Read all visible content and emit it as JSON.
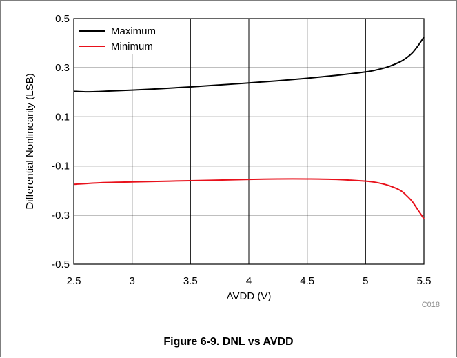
{
  "caption": "Figure 6-9. DNL vs AVDD",
  "figure_code": "C018",
  "colors": {
    "maximum": "#000000",
    "minimum": "#e8111b",
    "grid": "#000000"
  },
  "chart_data": {
    "type": "line",
    "title": "",
    "xlabel": "AVDD (V)",
    "ylabel": "Differential Nonlinearity (LSB)",
    "xlim": [
      2.5,
      5.5
    ],
    "ylim": [
      -0.5,
      0.5
    ],
    "x_ticks": [
      "2.5",
      "3",
      "3.5",
      "4",
      "4.5",
      "5",
      "5.5"
    ],
    "y_ticks": [
      "0.5",
      "0.3",
      "0.1",
      "-0.1",
      "-0.3",
      "-0.5"
    ],
    "grid": true,
    "legend_position": "top-left",
    "series": [
      {
        "name": "Maximum",
        "color": "#000000",
        "x": [
          2.5,
          2.6,
          2.7,
          2.8,
          3.0,
          3.25,
          3.5,
          3.75,
          4.0,
          4.25,
          4.5,
          4.75,
          5.0,
          5.1,
          5.2,
          5.3,
          5.35,
          5.4,
          5.45,
          5.5
        ],
        "y": [
          0.204,
          0.202,
          0.203,
          0.205,
          0.209,
          0.215,
          0.222,
          0.23,
          0.238,
          0.247,
          0.257,
          0.269,
          0.283,
          0.292,
          0.305,
          0.325,
          0.34,
          0.36,
          0.39,
          0.425
        ]
      },
      {
        "name": "Minimum",
        "color": "#e8111b",
        "x": [
          2.5,
          2.75,
          3.0,
          3.5,
          4.0,
          4.25,
          4.5,
          4.75,
          5.0,
          5.1,
          5.2,
          5.3,
          5.35,
          5.4,
          5.45,
          5.5
        ],
        "y": [
          -0.175,
          -0.168,
          -0.165,
          -0.16,
          -0.155,
          -0.153,
          -0.153,
          -0.155,
          -0.162,
          -0.168,
          -0.18,
          -0.2,
          -0.22,
          -0.245,
          -0.28,
          -0.315
        ]
      }
    ]
  }
}
